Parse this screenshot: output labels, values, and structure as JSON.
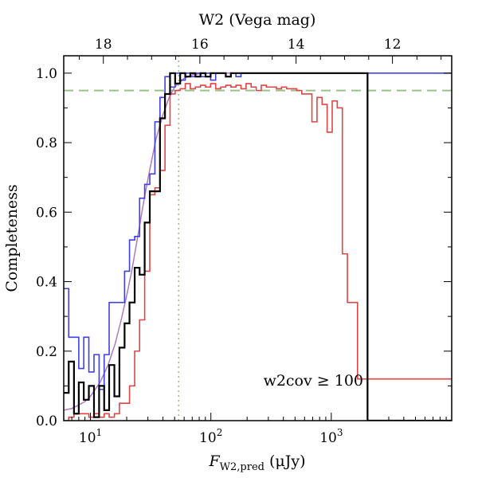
{
  "chart_data": {
    "type": "line",
    "xlabel_main": "F",
    "xlabel_sub": "W2,pred",
    "xlabel_units": " (μJy)",
    "ylabel": "Completeness",
    "top_xlabel": "W2 (Vega mag)",
    "xscale": "log",
    "xlim": [
      6,
      10000
    ],
    "ylim": [
      0,
      1.05
    ],
    "x_ticks": [
      {
        "value": 10,
        "base": "10",
        "exp": "1"
      },
      {
        "value": 100,
        "base": "10",
        "exp": "2"
      },
      {
        "value": 1000,
        "base": "10",
        "exp": "3"
      }
    ],
    "y_ticks": [
      {
        "value": 0.0,
        "label": "0.0"
      },
      {
        "value": 0.2,
        "label": "0.2"
      },
      {
        "value": 0.4,
        "label": "0.4"
      },
      {
        "value": 0.6,
        "label": "0.6"
      },
      {
        "value": 0.8,
        "label": "0.8"
      },
      {
        "value": 1.0,
        "label": "1.0"
      }
    ],
    "top_ticks": [
      {
        "value": 12.8,
        "label": "18"
      },
      {
        "value": 81.0,
        "label": "16"
      },
      {
        "value": 510.0,
        "label": "14"
      },
      {
        "value": 3220.0,
        "label": "12"
      }
    ],
    "hline": {
      "y": 0.95,
      "style": "dashed",
      "color": "#9bc08a"
    },
    "vline": {
      "x": 54,
      "style": "dotted",
      "color": "#9bc08a"
    },
    "annotation": "w2cov ≥ 100",
    "colors": {
      "red": "#e04545",
      "blue": "#4040e0",
      "black": "#000000",
      "purple": "#b07ac0"
    },
    "series": [
      {
        "color": "red",
        "type": "step",
        "x": [
          6.0,
          6.6,
          7.3,
          8.0,
          8.8,
          9.7,
          10.7,
          11.8,
          13.0,
          14.3,
          15.8,
          17.4,
          19.2,
          21.1,
          23.3,
          25.6,
          28.2,
          31.1,
          34.3,
          37.8,
          41.6,
          45.8,
          50.5,
          55.6,
          61.3,
          67.5,
          74.4,
          82.0,
          90.3,
          99.5,
          109.6,
          120.8,
          133.0,
          146.6,
          161.5,
          177.9,
          196.0,
          216.0,
          237.9,
          262.1,
          288.8,
          318.2,
          350.5,
          386.2,
          425.5,
          468.8,
          516.5,
          569.0,
          627.0,
          690.7,
          761.0,
          838.4,
          923.7,
          1017.7,
          1121.2,
          1235.3,
          1361.0,
          1499.5,
          1652.0,
          1820.0,
          2000.0
        ],
        "y": [
          0.0,
          0.01,
          0.02,
          0.02,
          0.02,
          0.01,
          0.02,
          0.01,
          0.02,
          0.01,
          0.02,
          0.05,
          0.05,
          0.1,
          0.2,
          0.29,
          0.43,
          0.65,
          0.67,
          0.72,
          0.85,
          0.94,
          0.95,
          0.955,
          0.97,
          0.955,
          0.96,
          0.965,
          0.96,
          0.97,
          0.955,
          0.96,
          0.965,
          0.96,
          0.965,
          0.955,
          0.97,
          0.96,
          0.95,
          0.965,
          0.96,
          0.96,
          0.955,
          0.96,
          0.955,
          0.955,
          0.95,
          0.94,
          0.94,
          0.86,
          0.93,
          0.91,
          0.83,
          0.92,
          0.9,
          0.48,
          0.34,
          0.34,
          0.12,
          0.12,
          0.12
        ]
      },
      {
        "color": "blue",
        "type": "step",
        "x": [
          6.0,
          6.6,
          7.3,
          8.0,
          8.8,
          9.7,
          10.7,
          11.8,
          13.0,
          14.3,
          15.8,
          17.4,
          19.2,
          21.1,
          23.3,
          25.6,
          28.2,
          31.1,
          34.3,
          37.8,
          41.6,
          45.8,
          50.5,
          55.6,
          61.3,
          67.5,
          74.4,
          82.0,
          90.3,
          99.5,
          109.6,
          120.8,
          133.0,
          146.6,
          161.5,
          177.9,
          196.0,
          216.0
        ],
        "y": [
          0.38,
          0.24,
          0.24,
          0.15,
          0.24,
          0.14,
          0.19,
          0.09,
          0.19,
          0.34,
          0.34,
          0.34,
          0.43,
          0.52,
          0.53,
          0.64,
          0.68,
          0.71,
          0.86,
          0.93,
          0.99,
          0.96,
          1.0,
          0.98,
          1.0,
          0.99,
          1.0,
          0.99,
          1.0,
          0.98,
          1.0,
          1.0,
          0.99,
          1.0,
          0.99,
          1.0,
          1.0,
          1.0
        ]
      },
      {
        "color": "black",
        "type": "step",
        "x": [
          6.0,
          6.6,
          7.3,
          8.0,
          8.8,
          9.7,
          10.7,
          11.8,
          13.0,
          14.3,
          15.8,
          17.4,
          19.2,
          21.1,
          23.3,
          25.6,
          28.2,
          31.1,
          34.3,
          37.8,
          41.6,
          45.8,
          50.5,
          55.6,
          61.3,
          67.5,
          74.4,
          82.0,
          90.3,
          99.5,
          109.6,
          120.8,
          133.0,
          146.6,
          161.5,
          177.9,
          196.0,
          2000.0
        ],
        "y": [
          0.08,
          0.17,
          0.02,
          0.11,
          0.06,
          0.1,
          0.01,
          0.1,
          0.03,
          0.16,
          0.07,
          0.21,
          0.28,
          0.34,
          0.44,
          0.42,
          0.57,
          0.66,
          0.66,
          0.87,
          0.94,
          1.0,
          0.97,
          1.0,
          0.99,
          1.0,
          0.99,
          1.0,
          0.99,
          1.0,
          1.0,
          1.0,
          0.99,
          1.0,
          1.0,
          1.0,
          1.0,
          0.0
        ]
      },
      {
        "color": "purple",
        "type": "smooth",
        "x": [
          6,
          7,
          8,
          9,
          10,
          12,
          14,
          16,
          18,
          20,
          22,
          25,
          28,
          31,
          35,
          40,
          45,
          50,
          60,
          70,
          80,
          100,
          150,
          300,
          1000,
          3000,
          10000
        ],
        "y": [
          0.03,
          0.035,
          0.045,
          0.055,
          0.07,
          0.11,
          0.16,
          0.22,
          0.29,
          0.36,
          0.43,
          0.54,
          0.64,
          0.72,
          0.81,
          0.88,
          0.93,
          0.96,
          0.985,
          0.995,
          0.998,
          1.0,
          1.0,
          1.0,
          1.0,
          1.0,
          1.0
        ]
      }
    ]
  }
}
